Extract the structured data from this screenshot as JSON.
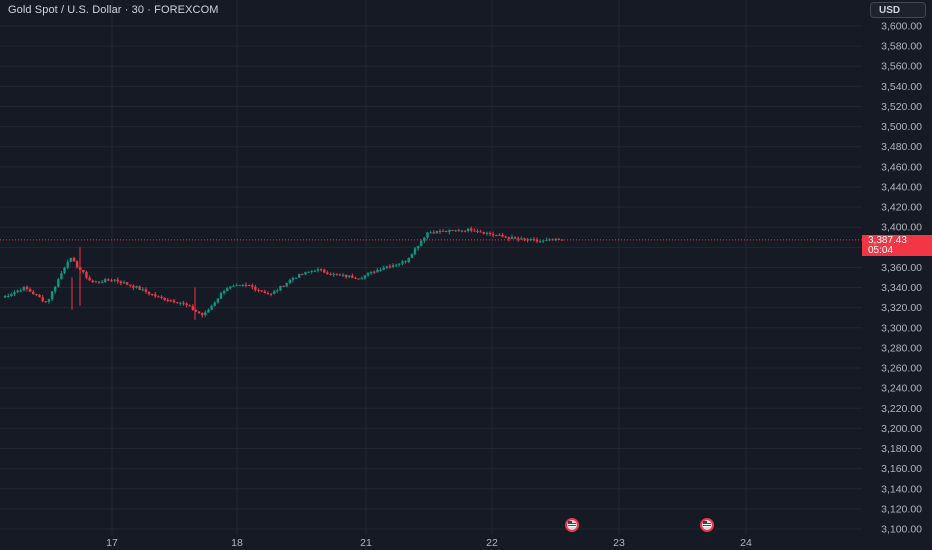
{
  "header": {
    "title": "Gold Spot / U.S. Dollar · 30 · FOREXCOM",
    "currency_label": "USD"
  },
  "price_badge": {
    "price": "3,387.43",
    "countdown": "05:04"
  },
  "colors": {
    "background": "#161a25",
    "grid": "#232632",
    "up": "#089981",
    "down": "#f23645",
    "text": "#d1d4dc",
    "axis_text": "#b2b5be"
  },
  "events": [
    {
      "icon": "us-flag-event-icon",
      "date": "22"
    },
    {
      "icon": "us-flag-event-icon",
      "date": "23"
    }
  ],
  "chart_data": {
    "type": "candlestick",
    "symbol": "Gold Spot / U.S. Dollar",
    "interval": "30",
    "exchange": "FOREXCOM",
    "ylim": [
      3100,
      3600
    ],
    "y_ticks": [
      "3,600.00",
      "3,580.00",
      "3,560.00",
      "3,540.00",
      "3,520.00",
      "3,500.00",
      "3,480.00",
      "3,460.00",
      "3,440.00",
      "3,420.00",
      "3,400.00",
      "3,380.00",
      "3,360.00",
      "3,340.00",
      "3,320.00",
      "3,300.00",
      "3,280.00",
      "3,260.00",
      "3,240.00",
      "3,220.00",
      "3,200.00",
      "3,180.00",
      "3,160.00",
      "3,140.00",
      "3,120.00",
      "3,100.00"
    ],
    "x_ticks": [
      "17",
      "18",
      "21",
      "22",
      "23",
      "24"
    ],
    "last_price": 3387.43,
    "grid": true,
    "approx_close_path": [
      {
        "x": "16 (start)",
        "y": 3330
      },
      {
        "x": "16",
        "y": 3340
      },
      {
        "x": "16",
        "y": 3325
      },
      {
        "x": "16",
        "y": 3370
      },
      {
        "x": "16",
        "y": 3345
      },
      {
        "x": "17",
        "y": 3348
      },
      {
        "x": "17",
        "y": 3340
      },
      {
        "x": "17",
        "y": 3330
      },
      {
        "x": "17",
        "y": 3325
      },
      {
        "x": "17",
        "y": 3312
      },
      {
        "x": "18",
        "y": 3340
      },
      {
        "x": "18",
        "y": 3342
      },
      {
        "x": "18",
        "y": 3333
      },
      {
        "x": "18",
        "y": 3350
      },
      {
        "x": "18",
        "y": 3358
      },
      {
        "x": "18",
        "y": 3352
      },
      {
        "x": "18",
        "y": 3350
      },
      {
        "x": "21",
        "y": 3360
      },
      {
        "x": "21",
        "y": 3366
      },
      {
        "x": "21",
        "y": 3395
      },
      {
        "x": "21",
        "y": 3396
      },
      {
        "x": "22",
        "y": 3398
      },
      {
        "x": "22",
        "y": 3392
      },
      {
        "x": "22",
        "y": 3388
      },
      {
        "x": "22",
        "y": 3386
      },
      {
        "x": "22",
        "y": 3387.43
      }
    ]
  }
}
